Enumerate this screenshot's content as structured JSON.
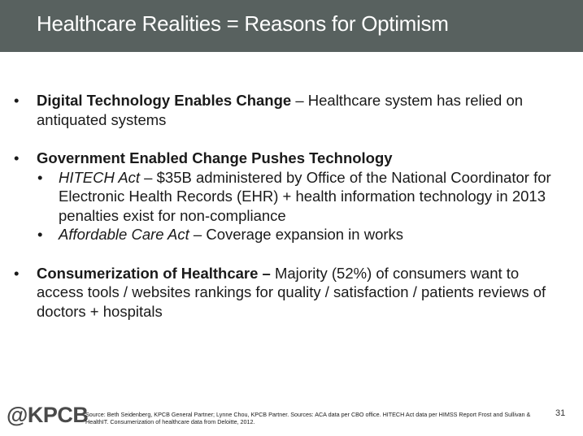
{
  "header": {
    "title": "Healthcare Realities = Reasons for Optimism",
    "bar_color": "#58615f"
  },
  "bullets": [
    {
      "lead": "Digital Technology Enables Change",
      "text": " – Healthcare system has relied on antiquated systems"
    },
    {
      "lead": "Government Enabled Change Pushes Technology",
      "sub": [
        {
          "lead": "HITECH Act",
          "text": " – $35B administered by Office of the National Coordinator for Electronic Health Records (EHR) + health information technology in 2013    penalties exist for non-compliance"
        },
        {
          "lead": "Affordable Care Act",
          "text": " – Coverage expansion in works"
        }
      ]
    },
    {
      "lead": "Consumerization of Healthcare –",
      "text": " Majority (52%) of consumers want to access tools / websites rankings for quality / satisfaction  / patients reviews of doctors + hospitals"
    }
  ],
  "bullet_glyph": "•",
  "footer": {
    "logo": "@KPCB",
    "source": "Source: Beth Seidenberg, KPCB General Partner; Lynne Chou, KPCB Partner. Sources: ACA data per CBO office. HITECH Act data per HIMSS Report Frost and Sullivan & HealthIT. Consumerization of healthcare data from Deloitte, 2012.",
    "page_number": "31"
  }
}
